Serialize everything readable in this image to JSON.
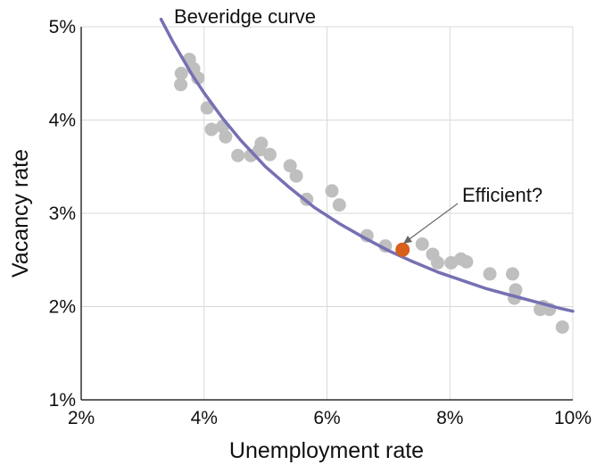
{
  "chart_data": {
    "type": "scatter",
    "title": "",
    "xlabel": "Unemployment rate",
    "ylabel": "Vacancy rate",
    "xlim": [
      2,
      10
    ],
    "ylim": [
      1,
      5
    ],
    "x_ticks": [
      "2%",
      "4%",
      "6%",
      "8%",
      "10%"
    ],
    "y_ticks": [
      "1%",
      "2%",
      "3%",
      "4%",
      "5%"
    ],
    "grid": true,
    "series": [
      {
        "name": "",
        "kind": "points",
        "color": "#bfbfbf",
        "x": [
          3.62,
          3.63,
          3.76,
          3.83,
          3.9,
          4.05,
          4.12,
          4.3,
          4.35,
          4.55,
          4.76,
          4.9,
          4.93,
          5.07,
          5.4,
          5.5,
          5.67,
          6.08,
          6.2,
          6.65,
          6.95,
          7.55,
          7.72,
          7.8,
          8.02,
          8.18,
          8.27,
          8.65,
          9.02,
          9.05,
          9.07,
          9.47,
          9.52,
          9.62,
          9.83
        ],
        "y": [
          4.38,
          4.5,
          4.65,
          4.55,
          4.45,
          4.13,
          3.9,
          3.93,
          3.82,
          3.62,
          3.62,
          3.68,
          3.75,
          3.63,
          3.51,
          3.4,
          3.15,
          3.24,
          3.09,
          2.76,
          2.65,
          2.67,
          2.56,
          2.47,
          2.47,
          2.51,
          2.48,
          2.35,
          2.35,
          2.09,
          2.18,
          1.97,
          2.0,
          1.97,
          1.78
        ]
      },
      {
        "name": "Beveridge curve",
        "kind": "curve",
        "color": "#7670b3",
        "x": [
          3.3,
          3.5,
          3.8,
          4.0,
          4.3,
          4.6,
          5.0,
          5.4,
          5.8,
          6.2,
          6.6,
          7.0,
          7.4,
          7.8,
          8.2,
          8.6,
          9.0,
          9.4,
          9.8,
          10.0
        ],
        "y": [
          5.08,
          4.83,
          4.49,
          4.29,
          4.02,
          3.78,
          3.5,
          3.27,
          3.06,
          2.89,
          2.74,
          2.6,
          2.48,
          2.37,
          2.28,
          2.19,
          2.12,
          2.05,
          1.98,
          1.95
        ]
      },
      {
        "name": "Efficient?",
        "kind": "highlight",
        "color": "#d9601a",
        "x": [
          7.23
        ],
        "y": [
          2.61
        ]
      }
    ],
    "annotations": [
      {
        "text": "Beveridge curve",
        "x": 3.3,
        "y": 5.08
      },
      {
        "text": "Efficient?",
        "x": 7.23,
        "y": 2.61
      }
    ]
  }
}
